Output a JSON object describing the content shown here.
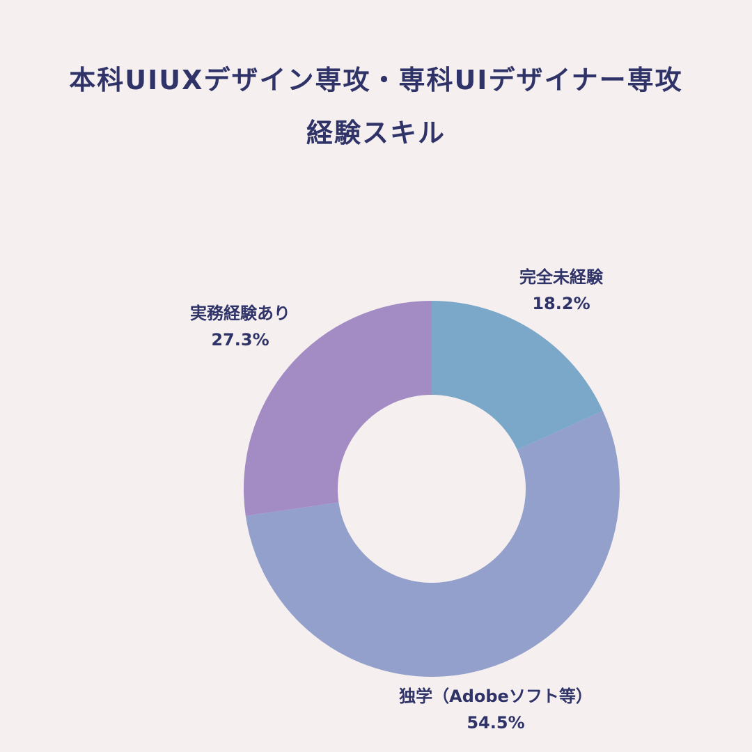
{
  "chart_data": {
    "type": "pie",
    "title_lines": [
      "本科UIUXデザイン専攻・専科UIデザイナー専攻",
      "経験スキル"
    ],
    "slices": [
      {
        "label": "完全未経験",
        "value": 18.2,
        "value_label": "18.2%",
        "color": "#7ba7c9"
      },
      {
        "label": "独学（Adobeソフト等）",
        "value": 54.5,
        "value_label": "54.5%",
        "color": "#94a0cc"
      },
      {
        "label": "実務経験あり",
        "value": 27.3,
        "value_label": "27.3%",
        "color": "#a38bc4"
      }
    ],
    "start_angle_deg": 0,
    "direction": "clockwise",
    "donut": true,
    "legend": "none"
  }
}
